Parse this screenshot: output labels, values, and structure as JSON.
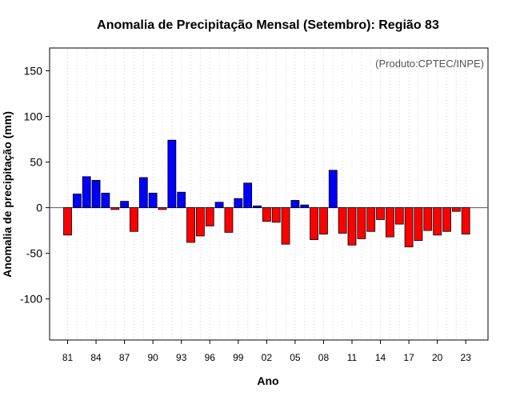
{
  "chart_data": {
    "type": "bar",
    "title": "Anomalia de Precipitação Mensal (Setembro): Região 83",
    "xlabel": "Ano",
    "ylabel": "Anomalia de precipitação (mm)",
    "source_note": "(Produto:CPTEC/INPE)",
    "ylim": [
      -145,
      175
    ],
    "yticks": [
      -100,
      -50,
      0,
      50,
      100,
      150
    ],
    "ytick_labels": [
      "-100",
      "-50",
      "0",
      "50",
      "100",
      "150"
    ],
    "xtick_labels": [
      "81",
      "84",
      "87",
      "90",
      "93",
      "96",
      "99",
      "02",
      "05",
      "08",
      "11",
      "14",
      "17",
      "20",
      "23"
    ],
    "xtick_years": [
      1981,
      1984,
      1987,
      1990,
      1993,
      1996,
      1999,
      2002,
      2005,
      2008,
      2011,
      2014,
      2017,
      2020,
      2023
    ],
    "grid": true,
    "colors": {
      "positive": "#0000ff",
      "negative": "#ff0000",
      "zero_line": "#555555",
      "grid": "#d3d3d3"
    },
    "years": [
      1981,
      1982,
      1983,
      1984,
      1985,
      1986,
      1987,
      1988,
      1989,
      1990,
      1991,
      1992,
      1993,
      1994,
      1995,
      1996,
      1997,
      1998,
      1999,
      2000,
      2001,
      2002,
      2003,
      2004,
      2005,
      2006,
      2007,
      2008,
      2009,
      2010,
      2011,
      2012,
      2013,
      2014,
      2015,
      2016,
      2017,
      2018,
      2019,
      2020,
      2021,
      2022,
      2023
    ],
    "values": [
      -30,
      15,
      34,
      30,
      16,
      -2,
      7,
      -26,
      33,
      16,
      -2,
      74,
      17,
      -38,
      -31,
      -20,
      6,
      -27,
      10,
      27,
      2,
      -15,
      -16,
      -40,
      8,
      3,
      -35,
      -29,
      41,
      -28,
      -41,
      -34,
      -26,
      -13,
      -32,
      -18,
      -43,
      -36,
      -25,
      -30,
      -26,
      -4,
      -29
    ]
  }
}
